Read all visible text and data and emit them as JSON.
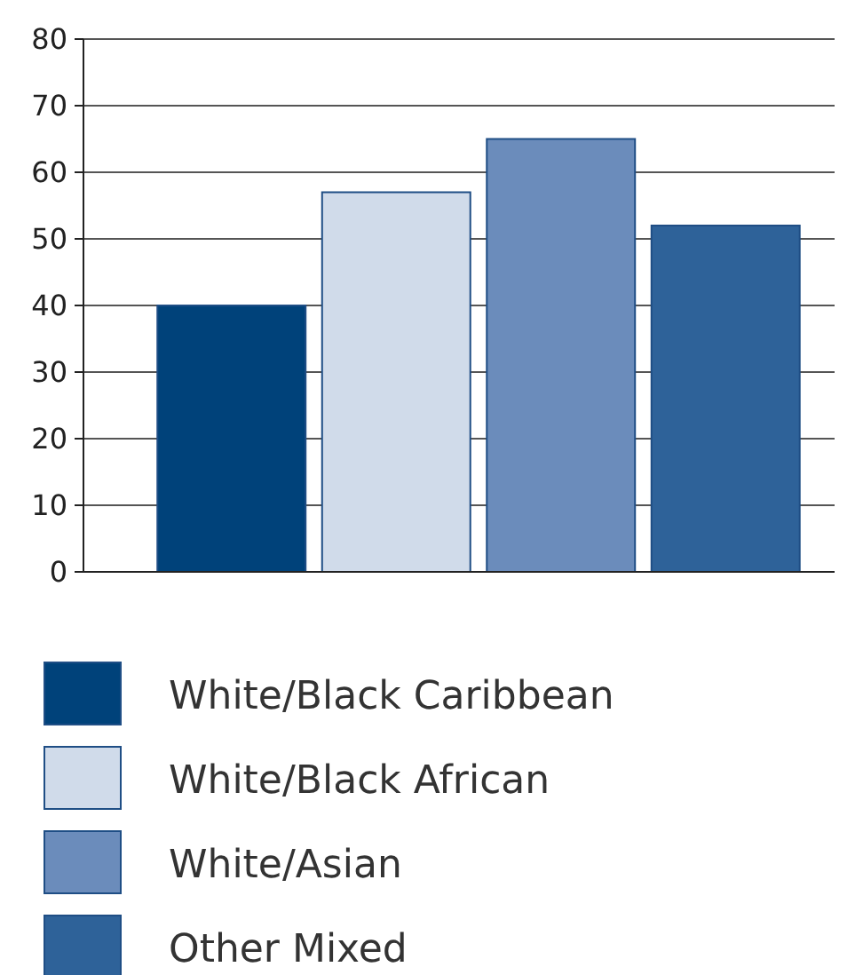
{
  "chart_data": {
    "type": "bar",
    "categories": [
      null,
      null,
      null,
      null
    ],
    "series": [
      {
        "name": "White/Black Caribbean",
        "color": "#00427a",
        "values": [
          40,
          null,
          null,
          null
        ]
      },
      {
        "name": "White/Black African",
        "color": "#d0dbea",
        "values": [
          null,
          57,
          null,
          null
        ]
      },
      {
        "name": "White/Asian",
        "color": "#6b8cbb",
        "values": [
          null,
          null,
          65,
          null
        ]
      },
      {
        "name": "Other Mixed",
        "color": "#2e6299",
        "values": [
          null,
          null,
          null,
          52
        ]
      }
    ],
    "ylim": [
      0,
      80
    ],
    "yticks": [
      0,
      10,
      20,
      30,
      40,
      50,
      60,
      70,
      80
    ],
    "grid": "y",
    "legend": "bottom"
  }
}
